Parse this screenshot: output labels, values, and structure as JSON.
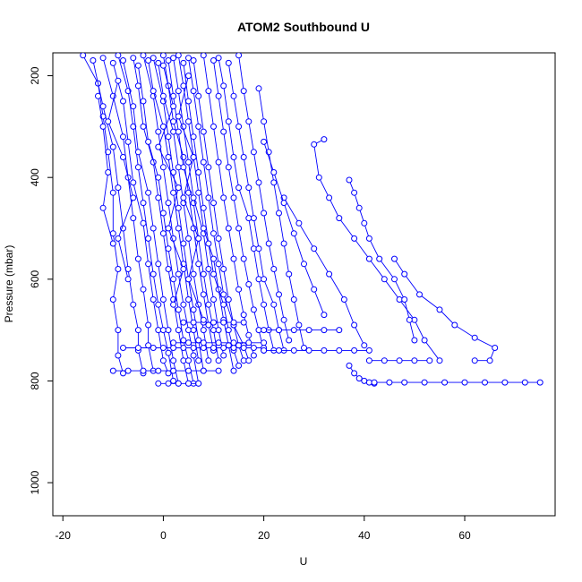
{
  "chart_data": {
    "type": "line",
    "title": "ATOM2 Southbound U",
    "xlabel": "U",
    "ylabel": "Pressure (mbar)",
    "xlim": [
      -22,
      78
    ],
    "ylim": [
      1065,
      155
    ],
    "y_reversed": true,
    "grid": false,
    "legend": "none",
    "x_ticks": [
      -20,
      0,
      20,
      40,
      60
    ],
    "y_ticks": [
      200,
      400,
      600,
      800,
      1000
    ],
    "marker": "open-circle",
    "series_color": "#0000ff",
    "series": [
      {
        "x": [
          -16,
          -13,
          -12,
          -11,
          -10,
          -10,
          -9,
          -10,
          -9,
          -9,
          -8
        ],
        "y": [
          160,
          215,
          280,
          350,
          430,
          510,
          580,
          640,
          700,
          750,
          785
        ]
      },
      {
        "x": [
          -14,
          -12,
          -10,
          -9,
          -8,
          -7,
          -6,
          -5,
          -5,
          -4
        ],
        "y": [
          170,
          260,
          340,
          420,
          500,
          580,
          650,
          700,
          740,
          785
        ]
      },
      {
        "x": [
          -12,
          -10,
          -8,
          -7,
          -6,
          -5,
          -4,
          -3,
          -3,
          -2
        ],
        "y": [
          165,
          240,
          320,
          400,
          480,
          560,
          620,
          690,
          730,
          780
        ]
      },
      {
        "x": [
          -10,
          -8,
          -7,
          -6,
          -4,
          -3,
          -2,
          -1,
          0,
          1
        ],
        "y": [
          175,
          250,
          330,
          410,
          490,
          570,
          640,
          700,
          760,
          785
        ]
      },
      {
        "x": [
          -9,
          -7,
          -6,
          -5,
          -4,
          -3,
          -2,
          -1,
          0,
          1,
          2
        ],
        "y": [
          160,
          230,
          300,
          380,
          450,
          520,
          590,
          650,
          700,
          745,
          800
        ]
      },
      {
        "x": [
          -8,
          -6,
          -5,
          -3,
          -2,
          -1,
          0,
          1,
          2,
          3
        ],
        "y": [
          170,
          260,
          350,
          430,
          500,
          570,
          640,
          700,
          760,
          805
        ]
      },
      {
        "x": [
          -6,
          -5,
          -4,
          -2,
          -1,
          0,
          1,
          2,
          3,
          4,
          5
        ],
        "y": [
          165,
          220,
          300,
          370,
          440,
          510,
          580,
          640,
          700,
          760,
          805
        ]
      },
      {
        "x": [
          -5,
          -4,
          -3,
          -1,
          0,
          1,
          2,
          3,
          4,
          5,
          6
        ],
        "y": [
          180,
          250,
          330,
          400,
          470,
          540,
          600,
          660,
          720,
          760,
          805
        ]
      },
      {
        "x": [
          -4,
          -2,
          -1,
          0,
          1,
          2,
          3,
          4,
          5,
          6,
          7
        ],
        "y": [
          160,
          240,
          310,
          380,
          450,
          520,
          590,
          650,
          700,
          750,
          805
        ]
      },
      {
        "x": [
          -3,
          -2,
          0,
          1,
          2,
          3,
          4,
          5,
          6,
          7
        ],
        "y": [
          170,
          230,
          300,
          360,
          430,
          500,
          570,
          640,
          700,
          760
        ]
      },
      {
        "x": [
          -2,
          0,
          1,
          2,
          3,
          4,
          5,
          6,
          7,
          8
        ],
        "y": [
          165,
          250,
          320,
          390,
          460,
          530,
          600,
          660,
          720,
          780
        ]
      },
      {
        "x": [
          -1,
          0,
          2,
          3,
          4,
          5,
          6,
          7,
          8,
          9
        ],
        "y": [
          175,
          240,
          310,
          380,
          450,
          520,
          590,
          650,
          700,
          760
        ]
      },
      {
        "x": [
          0,
          1,
          2,
          4,
          5,
          6,
          7,
          8,
          9,
          10
        ],
        "y": [
          160,
          220,
          290,
          360,
          430,
          500,
          570,
          630,
          690,
          740
        ]
      },
      {
        "x": [
          1,
          2,
          3,
          4,
          6,
          7,
          8,
          9,
          10,
          11
        ],
        "y": [
          170,
          240,
          310,
          380,
          450,
          520,
          590,
          650,
          700,
          760
        ]
      },
      {
        "x": [
          2,
          3,
          4,
          5,
          6,
          8,
          9,
          10,
          11,
          12
        ],
        "y": [
          165,
          230,
          300,
          370,
          440,
          510,
          580,
          640,
          700,
          750
        ]
      },
      {
        "x": [
          3,
          4,
          5,
          6,
          7,
          8,
          10,
          11,
          12,
          13,
          14
        ],
        "y": [
          160,
          220,
          290,
          360,
          430,
          500,
          560,
          620,
          680,
          730,
          780
        ]
      },
      {
        "x": [
          4,
          5,
          6,
          7,
          8,
          9,
          10,
          12,
          13,
          14,
          15
        ],
        "y": [
          175,
          250,
          320,
          390,
          460,
          530,
          590,
          650,
          700,
          740,
          770
        ]
      },
      {
        "x": [
          5,
          6,
          7,
          8,
          9,
          10,
          11,
          12,
          14,
          15,
          16
        ],
        "y": [
          165,
          230,
          300,
          370,
          440,
          510,
          570,
          630,
          690,
          730,
          760
        ]
      },
      {
        "x": [
          6,
          7,
          8,
          9,
          10,
          11,
          12,
          13,
          14,
          16,
          17
        ],
        "y": [
          170,
          240,
          310,
          380,
          450,
          520,
          580,
          640,
          690,
          730,
          760
        ]
      },
      {
        "x": [
          8,
          9,
          10,
          11,
          12,
          13,
          14,
          15,
          16,
          17,
          18
        ],
        "y": [
          160,
          230,
          300,
          370,
          440,
          500,
          560,
          620,
          670,
          710,
          750
        ]
      },
      {
        "x": [
          10,
          11,
          12,
          13,
          14,
          15,
          16,
          17,
          18,
          19,
          20
        ],
        "y": [
          170,
          240,
          310,
          380,
          440,
          500,
          560,
          610,
          660,
          700,
          740
        ]
      },
      {
        "x": [
          11,
          12,
          13,
          14,
          15,
          17,
          18,
          19,
          20,
          21,
          22
        ],
        "y": [
          165,
          220,
          290,
          360,
          420,
          480,
          540,
          600,
          650,
          700,
          740
        ]
      },
      {
        "x": [
          13,
          14,
          15,
          16,
          17,
          18,
          19,
          20,
          22,
          23,
          24
        ],
        "y": [
          175,
          240,
          300,
          360,
          420,
          480,
          540,
          600,
          650,
          700,
          740
        ]
      },
      {
        "x": [
          15,
          16,
          17,
          18,
          19,
          20,
          21,
          22,
          23,
          24,
          25
        ],
        "y": [
          160,
          230,
          290,
          350,
          410,
          470,
          530,
          580,
          630,
          680,
          720
        ]
      },
      {
        "x": [
          19,
          20,
          21,
          22,
          23,
          24,
          25,
          26,
          27,
          28
        ],
        "y": [
          225,
          290,
          350,
          410,
          470,
          530,
          590,
          640,
          690,
          735
        ]
      },
      {
        "x": [
          32,
          30,
          31,
          33,
          35,
          38,
          41,
          44,
          47,
          50,
          52,
          55
        ],
        "y": [
          325,
          335,
          400,
          440,
          480,
          520,
          560,
          600,
          640,
          680,
          720,
          760
        ]
      },
      {
        "x": [
          37,
          38,
          39,
          40,
          41,
          43,
          46,
          48,
          49,
          50
        ],
        "y": [
          405,
          430,
          460,
          490,
          520,
          560,
          600,
          640,
          680,
          720
        ]
      },
      {
        "x": [
          24,
          27,
          30,
          33,
          36,
          38,
          40
        ],
        "y": [
          440,
          490,
          540,
          590,
          640,
          690,
          730
        ]
      },
      {
        "x": [
          46,
          48,
          51,
          55,
          58,
          62,
          66,
          65,
          62
        ],
        "y": [
          560,
          590,
          630,
          660,
          690,
          715,
          735,
          760,
          760
        ]
      },
      {
        "x": [
          20,
          22,
          24,
          26,
          28,
          30,
          32
        ],
        "y": [
          330,
          390,
          450,
          510,
          570,
          620,
          670
        ]
      },
      {
        "x": [
          37,
          38,
          39,
          40,
          41,
          42
        ],
        "y": [
          770,
          785,
          795,
          800,
          803,
          805
        ]
      },
      {
        "x": [
          42,
          45,
          48,
          52,
          56,
          60,
          64,
          68,
          72,
          75
        ],
        "y": [
          803,
          803,
          803,
          803,
          803,
          803,
          803,
          803,
          803,
          803
        ]
      },
      {
        "x": [
          -8,
          -5,
          -2,
          0,
          2,
          4,
          6,
          8,
          10,
          12,
          14,
          16,
          18,
          20
        ],
        "y": [
          735,
          735,
          735,
          735,
          735,
          735,
          735,
          735,
          735,
          735,
          735,
          735,
          735,
          735
        ]
      },
      {
        "x": [
          20,
          23,
          26,
          29,
          32,
          35,
          38,
          41
        ],
        "y": [
          740,
          740,
          740,
          740,
          740,
          740,
          740,
          740
        ]
      },
      {
        "x": [
          41,
          44,
          47,
          50,
          53
        ],
        "y": [
          760,
          760,
          760,
          760,
          760
        ]
      },
      {
        "x": [
          -10,
          -7,
          -4,
          -1,
          2,
          5,
          8,
          11
        ],
        "y": [
          780,
          780,
          780,
          780,
          780,
          780,
          780,
          780
        ]
      },
      {
        "x": [
          4,
          6,
          8,
          10,
          12,
          14,
          16
        ],
        "y": [
          685,
          685,
          685,
          685,
          685,
          685,
          685
        ]
      },
      {
        "x": [
          -1,
          1,
          3,
          5,
          7
        ],
        "y": [
          805,
          805,
          805,
          805,
          805
        ]
      },
      {
        "x": [
          2,
          5,
          8,
          11,
          14,
          17,
          20
        ],
        "y": [
          725,
          725,
          725,
          725,
          725,
          725,
          725
        ]
      },
      {
        "x": [
          20,
          23,
          26,
          29,
          32,
          35
        ],
        "y": [
          700,
          700,
          700,
          700,
          700,
          700
        ]
      },
      {
        "x": [
          -13,
          -12,
          -11,
          -12,
          -10
        ],
        "y": [
          240,
          300,
          390,
          460,
          530
        ]
      },
      {
        "x": [
          -9,
          -11,
          -8,
          -6,
          -9,
          -7
        ],
        "y": [
          210,
          290,
          360,
          440,
          520,
          600
        ]
      },
      {
        "x": [
          0,
          2,
          -1,
          3,
          1,
          4,
          2
        ],
        "y": [
          180,
          260,
          340,
          420,
          500,
          580,
          650
        ]
      },
      {
        "x": [
          5,
          3,
          6,
          4,
          7,
          5,
          8
        ],
        "y": [
          200,
          280,
          360,
          440,
          520,
          600,
          680
        ]
      }
    ]
  }
}
